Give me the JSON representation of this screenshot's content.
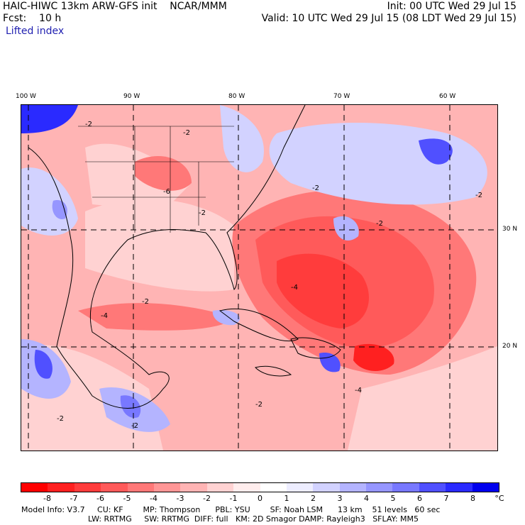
{
  "header": {
    "line1_left": "HAIC-HIWC 13km ARW-GFS init    NCAR/MMM",
    "line1_right": "Init: 00 UTC Wed 29 Jul 15",
    "line2_left": "Fcst:    10 h",
    "line2_right": "Valid: 10 UTC Wed 29 Jul 15 (08 LDT Wed 29 Jul 15)",
    "field_name": "Lifted index"
  },
  "map": {
    "lon_labels": [
      "100 W",
      "90 W",
      "80 W",
      "70 W",
      "60 W"
    ],
    "lat_labels": [
      "30 N",
      "20 N"
    ],
    "contour_labels": [
      "-2",
      "-4",
      "-6"
    ]
  },
  "colorbar": {
    "ticks": [
      "-8",
      "-7",
      "-6",
      "-5",
      "-4",
      "-3",
      "-2",
      "-1",
      "0",
      "1",
      "2",
      "3",
      "4",
      "5",
      "6",
      "7",
      "8"
    ],
    "unit": "°C",
    "colors": [
      "#ff0000",
      "#ff2020",
      "#ff3c3c",
      "#ff5a5a",
      "#ff7878",
      "#ff9696",
      "#ffb4b4",
      "#ffd2d2",
      "#ffeded",
      "#ffffff",
      "#ededff",
      "#d2d2ff",
      "#b4b4ff",
      "#9696ff",
      "#7878ff",
      "#5050ff",
      "#2a2aff",
      "#0000ee"
    ]
  },
  "footer": {
    "line1": "Model Info: V3.7     CU: KF        MP: Thompson      PBL: YSU        SF: Noah LSM      13 km    51 levels   60 sec",
    "line2": "LW: RRTMG     SW: RRTMG  DIFF: full   KM: 2D Smagor DAMP: Rayleigh3   SFLAY: MM5"
  }
}
